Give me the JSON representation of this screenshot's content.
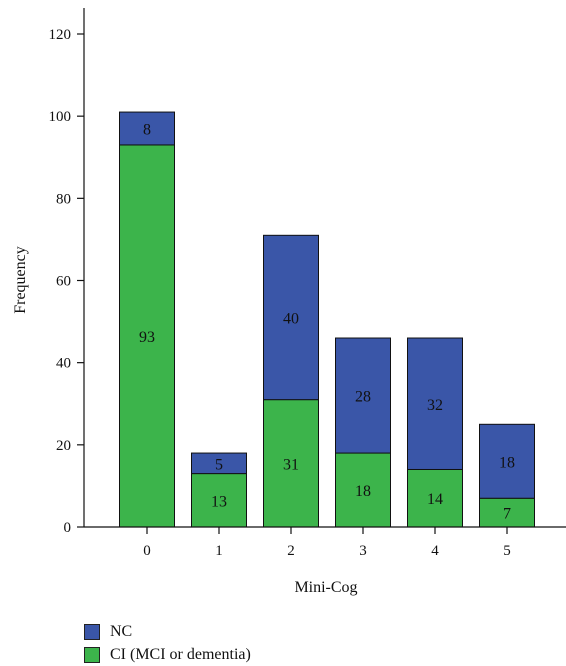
{
  "chart_data": {
    "type": "bar",
    "stacked": true,
    "categories": [
      "0",
      "1",
      "2",
      "3",
      "4",
      "5"
    ],
    "series": [
      {
        "name": "CI (MCI or dementia)",
        "color": "#3cb44b",
        "values": [
          93,
          13,
          31,
          18,
          14,
          7
        ]
      },
      {
        "name": "NC",
        "color": "#3a56a8",
        "values": [
          8,
          5,
          40,
          28,
          32,
          18
        ]
      }
    ],
    "xlabel": "Mini-Cog",
    "ylabel": "Frequency",
    "ylim": [
      0,
      120
    ],
    "yticks": [
      "0",
      "20",
      "40",
      "60",
      "80",
      "100",
      "120"
    ],
    "grid": false,
    "legend_position": "bottom-left"
  },
  "legend": [
    {
      "label": "NC",
      "color": "#3a56a8"
    },
    {
      "label": "CI (MCI or dementia)",
      "color": "#3cb44b"
    }
  ]
}
